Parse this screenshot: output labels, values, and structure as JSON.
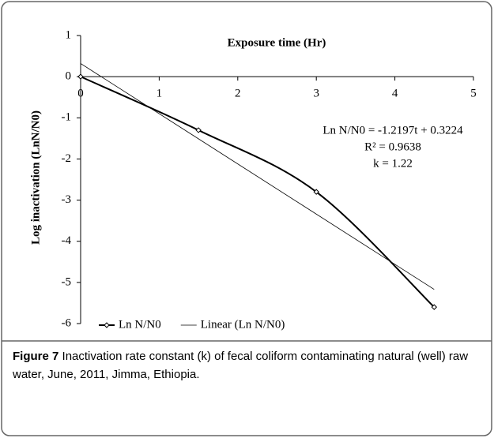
{
  "chart_data": {
    "type": "line",
    "xlabel": "Exposure time  (Hr)",
    "ylabel": "Log inactivation (LnN/N0)",
    "x": [
      0,
      1.5,
      3,
      4.5
    ],
    "series": [
      {
        "name": "Ln N/N0",
        "color": "#000000",
        "values": [
          0,
          -1.3,
          -2.8,
          -5.6
        ],
        "smooth": true,
        "marker": true
      },
      {
        "name": "Linear (Ln N/N0)",
        "color": "#000000",
        "x": [
          0,
          4.5
        ],
        "values": [
          0.32,
          -5.17
        ],
        "smooth": false,
        "marker": false
      }
    ],
    "annotations": [
      "Ln N/N0 = -1.2197t + 0.3224",
      "R² = 0.9638",
      "k = 1.22"
    ],
    "xlim": [
      0,
      5
    ],
    "xticks": [
      0,
      1,
      2,
      3,
      4,
      5
    ],
    "ylim": [
      -6,
      1
    ],
    "yticks": [
      -6,
      -5,
      -4,
      -3,
      -2,
      -1,
      0,
      1
    ],
    "legend": "bottom"
  },
  "caption": {
    "label": "Figure 7",
    "text": "Inactivation rate constant (k) of fecal coliform contaminating natural (well) raw water, June, 2011, Jimma, Ethiopia."
  }
}
